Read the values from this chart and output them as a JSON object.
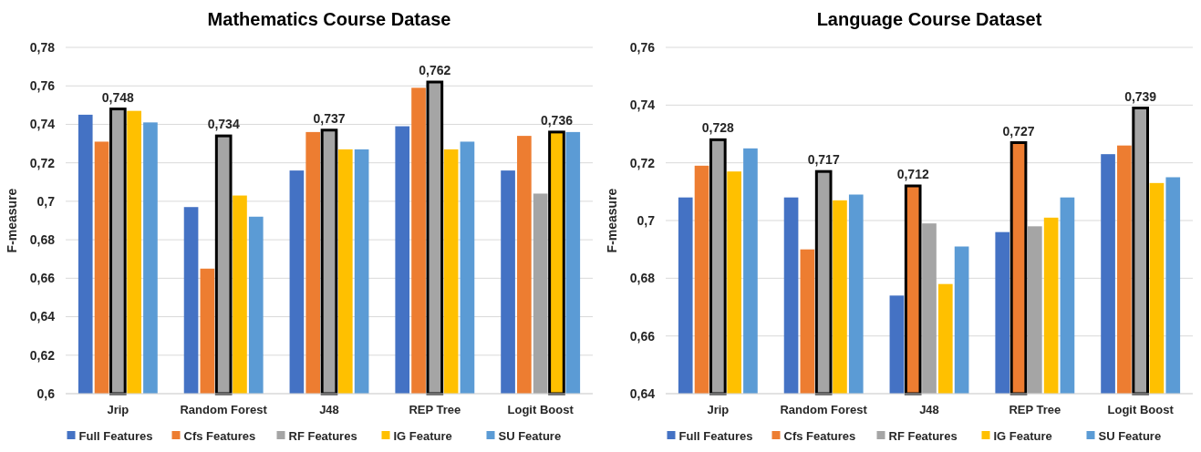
{
  "chart_data": [
    {
      "type": "bar",
      "title": "Mathematics Course Datase",
      "ylabel": "F-measure",
      "categories": [
        "Jrip",
        "Random Forest",
        "J48",
        "REP Tree",
        "Logit Boost"
      ],
      "series": [
        {
          "name": "Full Features",
          "color": "#4472c4",
          "values": [
            0.745,
            0.697,
            0.716,
            0.739,
            0.716
          ]
        },
        {
          "name": "Cfs Features",
          "color": "#ed7d31",
          "values": [
            0.731,
            0.665,
            0.736,
            0.759,
            0.734
          ]
        },
        {
          "name": "RF Features",
          "color": "#a5a5a5",
          "values": [
            0.748,
            0.734,
            0.737,
            0.762,
            0.704
          ],
          "value_labels": [
            "0,748",
            "0,734",
            "0,737",
            "0,762",
            null
          ]
        },
        {
          "name": "IG Feature",
          "color": "#ffc000",
          "values": [
            0.747,
            0.703,
            0.727,
            0.727,
            0.736
          ],
          "value_labels": [
            null,
            null,
            null,
            null,
            "0,736"
          ]
        },
        {
          "name": "SU Feature",
          "color": "#5b9bd5",
          "values": [
            0.741,
            0.692,
            0.727,
            0.731,
            0.736
          ]
        }
      ],
      "ylim": [
        0.6,
        0.78
      ],
      "yticks": [
        {
          "value": 0.6,
          "label": "0,6"
        },
        {
          "value": 0.62,
          "label": "0,62"
        },
        {
          "value": 0.64,
          "label": "0,64"
        },
        {
          "value": 0.66,
          "label": "0,66"
        },
        {
          "value": 0.68,
          "label": "0,68"
        },
        {
          "value": 0.7,
          "label": "0,7"
        },
        {
          "value": 0.72,
          "label": "0,72"
        },
        {
          "value": 0.74,
          "label": "0,74"
        },
        {
          "value": 0.76,
          "label": "0,76"
        },
        {
          "value": 0.78,
          "label": "0,78"
        }
      ],
      "grid": "y",
      "legend": "bottom"
    },
    {
      "type": "bar",
      "title": "Language Course Dataset",
      "ylabel": "F-measure",
      "categories": [
        "Jrip",
        "Random Forest",
        "J48",
        "REP Tree",
        "Logit Boost"
      ],
      "series": [
        {
          "name": "Full Features",
          "color": "#4472c4",
          "values": [
            0.708,
            0.708,
            0.674,
            0.696,
            0.723
          ]
        },
        {
          "name": "Cfs Features",
          "color": "#ed7d31",
          "values": [
            0.719,
            0.69,
            0.712,
            0.727,
            0.726
          ],
          "value_labels": [
            null,
            null,
            "0,712",
            "0,727",
            null
          ]
        },
        {
          "name": "RF Features",
          "color": "#a5a5a5",
          "values": [
            0.728,
            0.717,
            0.699,
            0.698,
            0.739
          ],
          "value_labels": [
            "0,728",
            "0,717",
            null,
            null,
            "0,739"
          ]
        },
        {
          "name": "IG Feature",
          "color": "#ffc000",
          "values": [
            0.717,
            0.707,
            0.678,
            0.701,
            0.713
          ]
        },
        {
          "name": "SU Feature",
          "color": "#5b9bd5",
          "values": [
            0.725,
            0.709,
            0.691,
            0.708,
            0.715
          ]
        }
      ],
      "ylim": [
        0.64,
        0.76
      ],
      "yticks": [
        {
          "value": 0.64,
          "label": "0,64"
        },
        {
          "value": 0.66,
          "label": "0,66"
        },
        {
          "value": 0.68,
          "label": "0,68"
        },
        {
          "value": 0.7,
          "label": "0,7"
        },
        {
          "value": 0.72,
          "label": "0,72"
        },
        {
          "value": 0.74,
          "label": "0,74"
        },
        {
          "value": 0.76,
          "label": "0,76"
        }
      ],
      "grid": "y",
      "legend": "bottom"
    }
  ]
}
